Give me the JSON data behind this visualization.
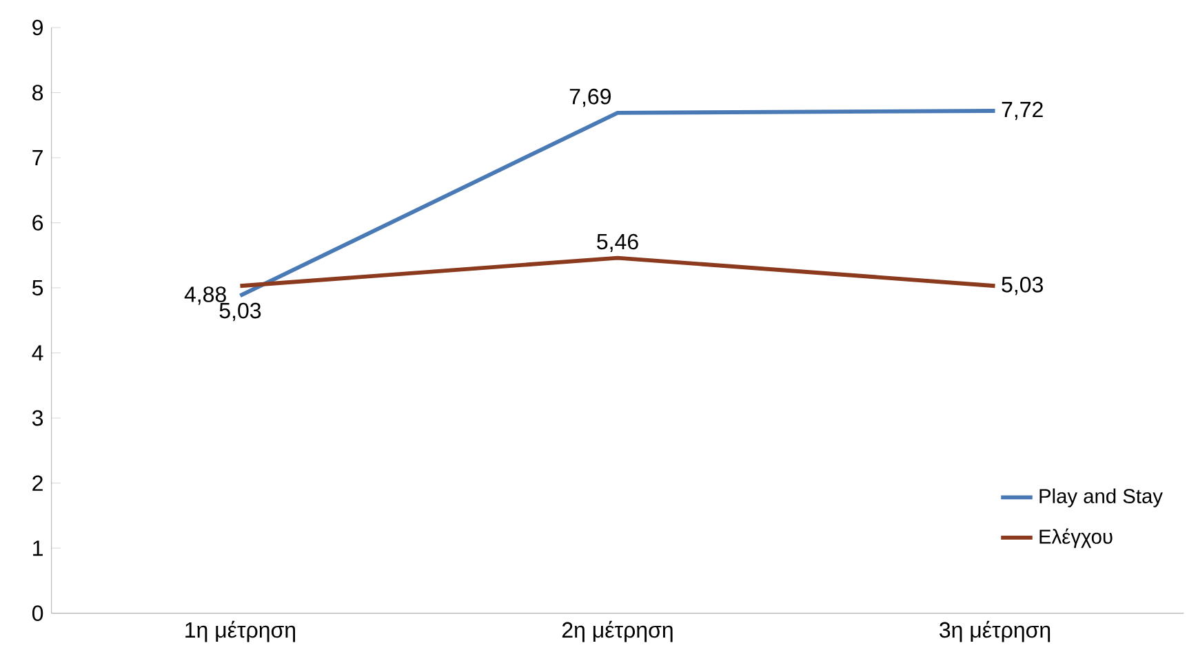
{
  "chart_data": {
    "type": "line",
    "categories": [
      "1η μέτρηση",
      "2η μέτρηση",
      "3η μέτρηση"
    ],
    "series": [
      {
        "name": "Play and Stay",
        "color": "#4a7ab5",
        "values": [
          4.88,
          7.69,
          7.72
        ],
        "value_labels": [
          "4,88",
          "7,69",
          "7,72"
        ]
      },
      {
        "name": "Ελέγχου",
        "color": "#8b3a1e",
        "values": [
          5.03,
          5.46,
          5.03
        ],
        "value_labels": [
          "5,03",
          "5,46",
          "5,03"
        ]
      }
    ],
    "ylim": [
      0,
      9
    ],
    "yticks": [
      0,
      1,
      2,
      3,
      4,
      5,
      6,
      7,
      8,
      9
    ],
    "grid": false,
    "legend": "bottom right",
    "marker": "none",
    "line_style": "solid"
  }
}
